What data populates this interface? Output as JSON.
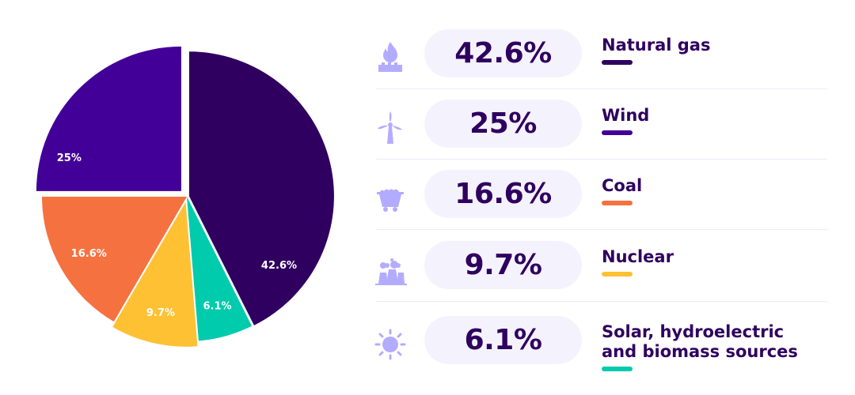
{
  "chart_data": {
    "type": "pie",
    "title": "",
    "slices": [
      {
        "label": "Natural gas",
        "value": 42.6,
        "display": "42.6%",
        "color": "#2f005f",
        "icon": "gas-flame-icon"
      },
      {
        "label": "Solar, hydroelectric and biomass sources",
        "value": 6.1,
        "display": "6.1%",
        "color": "#00cbac",
        "icon": "sun-icon"
      },
      {
        "label": "Nuclear",
        "value": 9.7,
        "display": "9.7%",
        "color": "#fec134",
        "icon": "nuclear-plant-icon"
      },
      {
        "label": "Coal",
        "value": 16.6,
        "display": "16.6%",
        "color": "#f57240",
        "icon": "coal-cart-icon"
      },
      {
        "label": "Wind",
        "value": 25,
        "display": "25%",
        "color": "#430099",
        "icon": "wind-turbine-icon"
      }
    ],
    "legend": {
      "placement": "right",
      "rows": [
        {
          "display": "42.6%",
          "label_lines": [
            "Natural gas"
          ],
          "color": "#2f005f",
          "icon": "gas-flame-icon"
        },
        {
          "display": "25%",
          "label_lines": [
            "Wind"
          ],
          "color": "#430099",
          "icon": "wind-turbine-icon"
        },
        {
          "display": "16.6%",
          "label_lines": [
            "Coal"
          ],
          "color": "#f57240",
          "icon": "coal-cart-icon"
        },
        {
          "display": "9.7%",
          "label_lines": [
            "Nuclear"
          ],
          "color": "#fec134",
          "icon": "nuclear-plant-icon"
        },
        {
          "display": "6.1%",
          "label_lines": [
            "Solar, hydroelectric",
            "and biomass sources"
          ],
          "color": "#00cbac",
          "icon": "sun-icon"
        }
      ]
    }
  },
  "colors": {
    "text": "#2f005f",
    "icon": "#b3acfe",
    "pill": "#f4f3fd"
  }
}
